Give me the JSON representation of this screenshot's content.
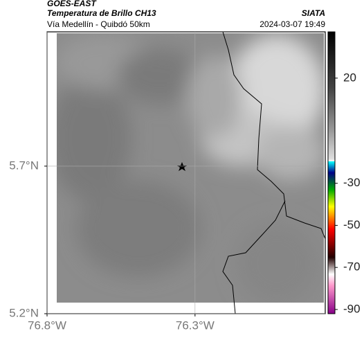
{
  "header": {
    "source": "GOES-EAST",
    "title": "Temperatura de Brillo CH13",
    "subtitle": "Vía Medellín - Quibdó 50km",
    "agency": "SIATA",
    "datetime": "2024-03-07 19:49"
  },
  "map": {
    "xlim": [
      -76.8,
      -75.86
    ],
    "ylim": [
      5.2,
      6.155
    ],
    "xticks": [
      {
        "value": -76.8,
        "label": "76.8°W"
      },
      {
        "value": -76.3,
        "label": "76.3°W"
      }
    ],
    "yticks": [
      {
        "value": 5.7,
        "label": "5.7°N"
      },
      {
        "value": 5.2,
        "label": "5.2°N"
      }
    ],
    "grid": true
  },
  "colorbar": {
    "lim": [
      -92,
      42
    ],
    "ticks": [
      20,
      -30,
      -50,
      -70,
      -90
    ]
  }
}
